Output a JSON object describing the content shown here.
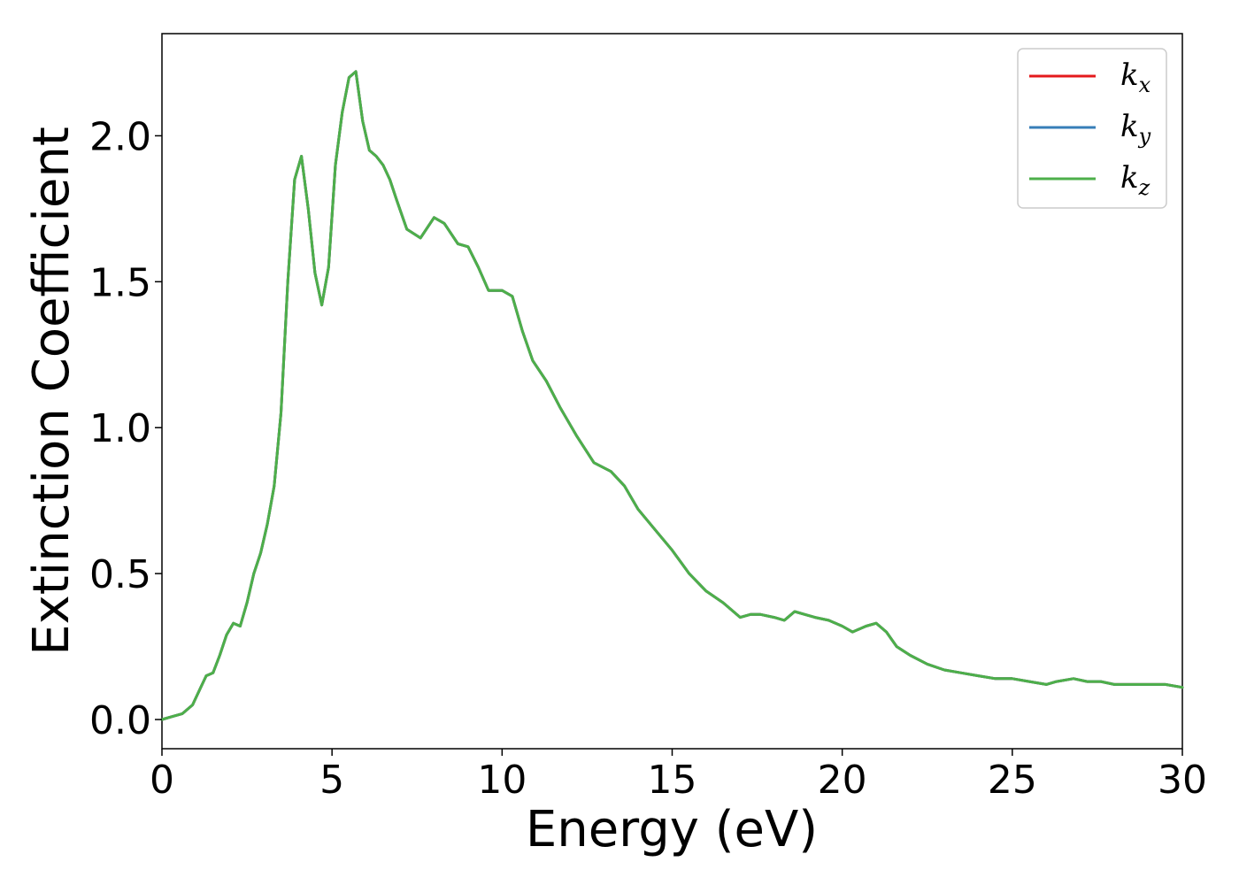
{
  "chart_data": {
    "type": "line",
    "xlabel": "Energy (eV)",
    "ylabel": "Extinction Coefficient",
    "xlim": [
      0,
      30
    ],
    "ylim": [
      -0.1,
      2.35
    ],
    "xticks": [
      0,
      5,
      10,
      15,
      20,
      25,
      30
    ],
    "yticks": [
      0.0,
      0.5,
      1.0,
      1.5,
      2.0
    ],
    "xtick_labels": [
      "0",
      "5",
      "10",
      "15",
      "20",
      "25",
      "30"
    ],
    "ytick_labels": [
      "0.0",
      "0.5",
      "1.0",
      "1.5",
      "2.0"
    ],
    "grid": false,
    "legend_position": "top-right",
    "x": [
      0,
      0.3,
      0.6,
      0.9,
      1.1,
      1.3,
      1.5,
      1.7,
      1.9,
      2.1,
      2.3,
      2.5,
      2.7,
      2.9,
      3.1,
      3.3,
      3.5,
      3.7,
      3.9,
      4.1,
      4.3,
      4.5,
      4.7,
      4.9,
      5.1,
      5.3,
      5.5,
      5.7,
      5.9,
      6.1,
      6.3,
      6.5,
      6.7,
      6.9,
      7.2,
      7.6,
      8.0,
      8.3,
      8.7,
      9.0,
      9.3,
      9.6,
      10.0,
      10.3,
      10.6,
      10.9,
      11.3,
      11.7,
      12.2,
      12.7,
      13.2,
      13.6,
      14.0,
      14.5,
      15.0,
      15.5,
      16.0,
      16.5,
      17.0,
      17.3,
      17.6,
      18.0,
      18.3,
      18.6,
      18.9,
      19.2,
      19.6,
      20.0,
      20.3,
      20.7,
      21.0,
      21.3,
      21.6,
      22.0,
      22.5,
      23.0,
      23.5,
      24.0,
      24.5,
      25.0,
      25.5,
      26.0,
      26.3,
      26.8,
      27.2,
      27.6,
      28.0,
      28.5,
      29.0,
      29.5,
      30.0
    ],
    "y_common": [
      0.0,
      0.01,
      0.02,
      0.05,
      0.1,
      0.15,
      0.16,
      0.22,
      0.29,
      0.33,
      0.32,
      0.4,
      0.5,
      0.57,
      0.67,
      0.8,
      1.05,
      1.5,
      1.85,
      1.93,
      1.75,
      1.53,
      1.42,
      1.55,
      1.9,
      2.08,
      2.2,
      2.22,
      2.05,
      1.95,
      1.93,
      1.9,
      1.85,
      1.78,
      1.68,
      1.65,
      1.72,
      1.7,
      1.63,
      1.62,
      1.55,
      1.47,
      1.47,
      1.45,
      1.33,
      1.23,
      1.16,
      1.07,
      0.97,
      0.88,
      0.85,
      0.8,
      0.72,
      0.65,
      0.58,
      0.5,
      0.44,
      0.4,
      0.35,
      0.36,
      0.36,
      0.35,
      0.34,
      0.37,
      0.36,
      0.35,
      0.34,
      0.32,
      0.3,
      0.32,
      0.33,
      0.3,
      0.25,
      0.22,
      0.19,
      0.17,
      0.16,
      0.15,
      0.14,
      0.14,
      0.13,
      0.12,
      0.13,
      0.14,
      0.13,
      0.13,
      0.12,
      0.12,
      0.12,
      0.12,
      0.11
    ],
    "series": [
      {
        "name": "k_x",
        "label_base": "k",
        "label_sub": "x",
        "color": "#e41a1c"
      },
      {
        "name": "k_y",
        "label_base": "k",
        "label_sub": "y",
        "color": "#377eb8"
      },
      {
        "name": "k_z",
        "label_base": "k",
        "label_sub": "z",
        "color": "#4daf4a"
      }
    ]
  }
}
